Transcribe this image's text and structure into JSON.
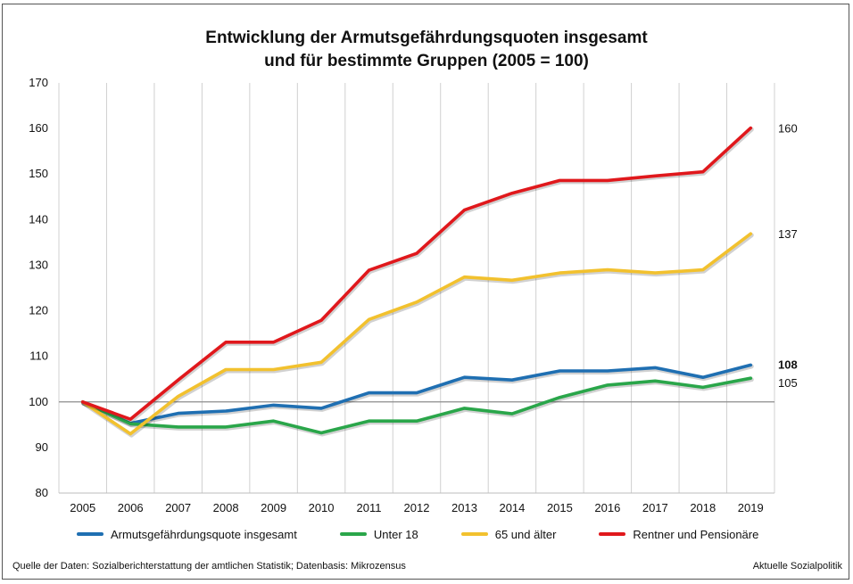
{
  "chart_data": {
    "type": "line",
    "title_line1": "Entwicklung der Armutsgefährdungsquoten insgesamt",
    "title_line2": "und für bestimmte Gruppen (2005 = 100)",
    "x": [
      "2005",
      "2006",
      "2007",
      "2008",
      "2009",
      "2010",
      "2011",
      "2012",
      "2013",
      "2014",
      "2015",
      "2016",
      "2017",
      "2018",
      "2019"
    ],
    "ylim": [
      80,
      170
    ],
    "yticks": [
      80,
      90,
      100,
      110,
      120,
      130,
      140,
      150,
      160,
      170
    ],
    "reference_line": 100,
    "grid": "vertical",
    "legend_position": "bottom",
    "series": [
      {
        "name": "Armutsgefährdungsquote insgesamt",
        "color": "#1f6fb2",
        "values": [
          100,
          95.3,
          97.5,
          98,
          99.3,
          98.6,
          102,
          102,
          105.4,
          104.8,
          106.8,
          106.8,
          107.5,
          105.4,
          108.1
        ],
        "end_label": "108",
        "end_label_bold": true
      },
      {
        "name": "Unter 18",
        "color": "#2aa64a",
        "values": [
          100,
          95.2,
          94.5,
          94.5,
          95.8,
          93.2,
          95.8,
          95.8,
          98.6,
          97.4,
          101,
          103.7,
          104.6,
          103.2,
          105.2
        ],
        "end_label": "105",
        "end_label_bold": false
      },
      {
        "name": "65 und älter",
        "color": "#f2c12e",
        "values": [
          100,
          93,
          101.2,
          107.1,
          107.1,
          108.7,
          118.1,
          121.9,
          127.4,
          126.7,
          128.3,
          129,
          128.3,
          129,
          136.9
        ],
        "end_label": "137",
        "end_label_bold": false
      },
      {
        "name": "Rentner und Pensionäre",
        "color": "#e0181c",
        "values": [
          100,
          96.2,
          104.8,
          113.1,
          113.1,
          117.9,
          128.9,
          132.6,
          142.1,
          145.8,
          148.6,
          148.6,
          149.6,
          150.5,
          160.1
        ],
        "end_label": "160",
        "end_label_bold": false
      }
    ]
  },
  "footer": {
    "source": "Quelle der Daten: Sozialberichterstattung der amtlichen Statistik; Datenbasis: Mikrozensus",
    "publisher": "Aktuelle Sozialpolitik"
  }
}
